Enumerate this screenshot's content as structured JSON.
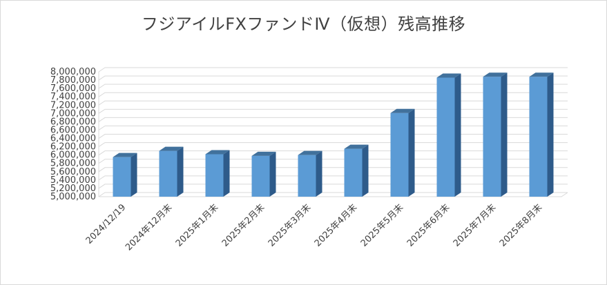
{
  "chart_data": {
    "type": "bar",
    "title": "フジアイルFXファンドⅣ（仮想）残高推移",
    "categories": [
      "2024/12/19",
      "2024年12月末",
      "2025年1月末",
      "2025年2月末",
      "2025年3月末",
      "2025年4月末",
      "2025年5月末",
      "2025年6月末",
      "2025年7月末",
      "2025年8月末"
    ],
    "values": [
      5950000,
      6100000,
      6020000,
      5980000,
      6000000,
      6150000,
      7010000,
      7860000,
      7880000,
      7880000
    ],
    "yticks": [
      "5,000,000",
      "5,200,000",
      "5,400,000",
      "5,600,000",
      "5,800,000",
      "6,000,000",
      "6,200,000",
      "6,400,000",
      "6,600,000",
      "6,800,000",
      "7,000,000",
      "7,200,000",
      "7,400,000",
      "7,600,000",
      "7,800,000",
      "8,000,000"
    ],
    "ylim": [
      5000000,
      8000000
    ],
    "grid": true,
    "colors": {
      "bar_front": "#5b9bd5",
      "bar_side": "#2e5b8a",
      "bar_top": "#41719c",
      "grid": "#d9d9d9"
    }
  }
}
